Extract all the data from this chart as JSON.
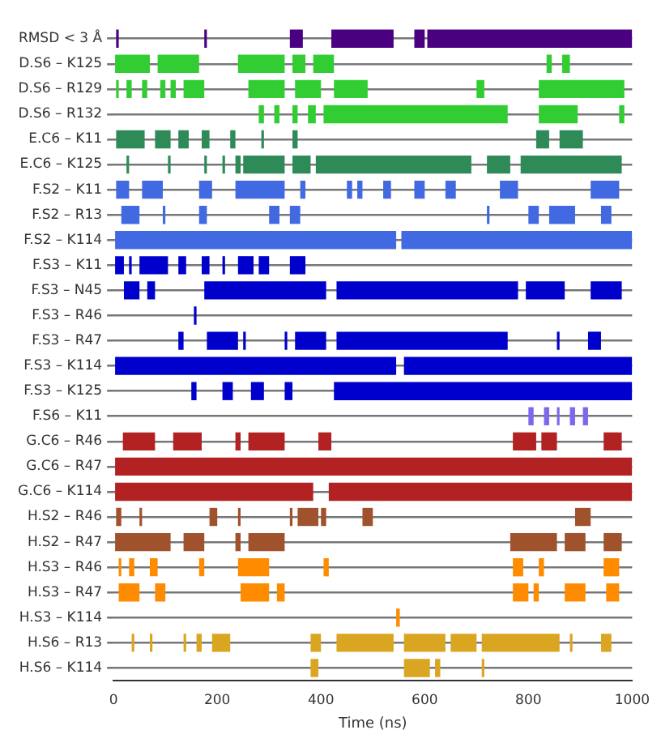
{
  "chart_data": {
    "type": "bar",
    "orientation": "horizontal",
    "xlabel": "Time (ns)",
    "xlim": [
      0,
      1000
    ],
    "xticks": [
      0,
      200,
      400,
      600,
      800,
      1000
    ],
    "grid": "y",
    "categories": [
      "RMSD < 3 Å",
      "D.S6 – K125",
      "D.S6 – R129",
      "D.S6 – R132",
      "E.C6 – K11",
      "E.C6 – K125",
      "F.S2 – K11",
      "F.S2 – R13",
      "F.S2 – K114",
      "F.S3 – K11",
      "F.S3 – N45",
      "F.S3 – R46",
      "F.S3 – R47",
      "F.S3 – K114",
      "F.S3 – K125",
      "F.S6 – K11",
      "G.C6 – R46",
      "G.C6 – R47",
      "G.C6 – K114",
      "H.S2 – R46",
      "H.S2 – R47",
      "H.S3 – R46",
      "H.S3 – R47",
      "H.S3 – K114",
      "H.S6 – R13",
      "H.S6 – K114"
    ],
    "series": [
      {
        "base": [
          5,
          3,
          5,
          280,
          5,
          25,
          5,
          15,
          3,
          3,
          20,
          155,
          125,
          3,
          150,
          800,
          18,
          3,
          3,
          5,
          3,
          10,
          10,
          545,
          35,
          380
        ],
        "values": [
          5,
          67,
          5,
          10,
          55,
          5,
          25,
          35,
          542,
          17,
          30,
          5,
          10,
          542,
          10,
          10,
          62,
          997,
          382,
          10,
          107,
          5,
          40,
          7,
          5,
          15
        ],
        "colors": [
          "#4b0082",
          "#32cd32",
          "#32cd32",
          "#32cd32",
          "#2e8b57",
          "#2e8b57",
          "#4169e1",
          "#4169e1",
          "#4169e1",
          "#0000cd",
          "#0000cd",
          "#0000cd",
          "#0000cd",
          "#0000cd",
          "#0000cd",
          "#7b68ee",
          "#b22222",
          "#b22222",
          "#b22222",
          "#a0522d",
          "#a0522d",
          "#ff8c00",
          "#ff8c00",
          "#ff8c00",
          "#daa520",
          "#daa520"
        ]
      },
      {
        "base": [
          175,
          85,
          25,
          310,
          80,
          105,
          55,
          95,
          555,
          30,
          65,
          null,
          180,
          560,
          210,
          830,
          115,
          null,
          415,
          50,
          135,
          30,
          80,
          null,
          70,
          560
        ],
        "values": [
          5,
          80,
          10,
          10,
          30,
          5,
          40,
          5,
          445,
          5,
          15,
          null,
          60,
          440,
          20,
          10,
          55,
          null,
          585,
          5,
          40,
          10,
          20,
          null,
          5,
          50
        ],
        "colors": [
          "#4b0082",
          "#32cd32",
          "#32cd32",
          "#32cd32",
          "#2e8b57",
          "#2e8b57",
          "#4169e1",
          "#4169e1",
          "#4169e1",
          "#0000cd",
          "#0000cd",
          "#0000cd",
          "#0000cd",
          "#0000cd",
          "#0000cd",
          "#7b68ee",
          "#b22222",
          "#b22222",
          "#b22222",
          "#a0522d",
          "#a0522d",
          "#ff8c00",
          "#ff8c00",
          "#ff8c00",
          "#daa520",
          "#daa520"
        ]
      },
      {
        "base": [
          340,
          240,
          55,
          345,
          125,
          175,
          165,
          165,
          null,
          50,
          175,
          null,
          250,
          null,
          265,
          855,
          235,
          null,
          null,
          185,
          235,
          70,
          245,
          null,
          135,
          620
        ],
        "values": [
          25,
          90,
          10,
          10,
          20,
          5,
          25,
          15,
          null,
          55,
          235,
          null,
          5,
          null,
          25,
          5,
          10,
          null,
          null,
          15,
          10,
          15,
          55,
          null,
          5,
          10
        ],
        "colors": [
          "#4b0082",
          "#32cd32",
          "#32cd32",
          "#32cd32",
          "#2e8b57",
          "#2e8b57",
          "#4169e1",
          "#4169e1",
          "#4169e1",
          "#0000cd",
          "#0000cd",
          "#0000cd",
          "#0000cd",
          "#0000cd",
          "#0000cd",
          "#7b68ee",
          "#b22222",
          "#b22222",
          "#b22222",
          "#a0522d",
          "#a0522d",
          "#ff8c00",
          "#ff8c00",
          "#ff8c00",
          "#daa520",
          "#daa520"
        ]
      },
      {
        "base": [
          420,
          345,
          90,
          375,
          170,
          210,
          235,
          300,
          null,
          125,
          430,
          null,
          330,
          null,
          330,
          880,
          260,
          null,
          null,
          240,
          260,
          165,
          315,
          null,
          160,
          710
        ],
        "values": [
          120,
          25,
          10,
          15,
          15,
          5,
          95,
          20,
          null,
          15,
          350,
          null,
          5,
          null,
          15,
          10,
          70,
          null,
          null,
          5,
          70,
          10,
          15,
          null,
          10,
          5
        ],
        "colors": [
          "#4b0082",
          "#32cd32",
          "#32cd32",
          "#32cd32",
          "#2e8b57",
          "#2e8b57",
          "#4169e1",
          "#4169e1",
          "#4169e1",
          "#0000cd",
          "#0000cd",
          "#0000cd",
          "#0000cd",
          "#0000cd",
          "#0000cd",
          "#7b68ee",
          "#b22222",
          "#b22222",
          "#b22222",
          "#a0522d",
          "#a0522d",
          "#ff8c00",
          "#ff8c00",
          "#ff8c00",
          "#daa520",
          "#daa520"
        ]
      },
      {
        "base": [
          580,
          385,
          110,
          405,
          225,
          235,
          360,
          340,
          null,
          170,
          795,
          null,
          350,
          null,
          425,
          905,
          395,
          null,
          null,
          340,
          765,
          240,
          770,
          null,
          190,
          null
        ],
        "values": [
          20,
          40,
          10,
          355,
          10,
          10,
          10,
          20,
          null,
          15,
          75,
          null,
          60,
          null,
          575,
          10,
          25,
          null,
          null,
          5,
          90,
          60,
          30,
          null,
          35,
          null
        ],
        "colors": [
          "#4b0082",
          "#32cd32",
          "#32cd32",
          "#32cd32",
          "#2e8b57",
          "#2e8b57",
          "#4169e1",
          "#4169e1",
          "#4169e1",
          "#0000cd",
          "#0000cd",
          "#0000cd",
          "#0000cd",
          "#0000cd",
          "#0000cd",
          "#7b68ee",
          "#b22222",
          "#b22222",
          "#b22222",
          "#a0522d",
          "#a0522d",
          "#ff8c00",
          "#ff8c00",
          "#ff8c00",
          "#daa520",
          "#daa520"
        ]
      },
      {
        "base": [
          605,
          835,
          135,
          820,
          285,
          250,
          450,
          720,
          null,
          210,
          920,
          null,
          430,
          null,
          null,
          null,
          770,
          null,
          null,
          355,
          870,
          405,
          810,
          null,
          380,
          null
        ],
        "values": [
          395,
          10,
          40,
          75,
          5,
          80,
          10,
          5,
          null,
          5,
          60,
          null,
          330,
          null,
          null,
          null,
          45,
          null,
          null,
          40,
          40,
          10,
          10,
          null,
          20,
          null
        ],
        "colors": [
          "#4b0082",
          "#32cd32",
          "#32cd32",
          "#32cd32",
          "#2e8b57",
          "#2e8b57",
          "#4169e1",
          "#4169e1",
          "#4169e1",
          "#0000cd",
          "#0000cd",
          "#0000cd",
          "#0000cd",
          "#0000cd",
          "#0000cd",
          "#7b68ee",
          "#b22222",
          "#b22222",
          "#b22222",
          "#a0522d",
          "#a0522d",
          "#ff8c00",
          "#ff8c00",
          "#ff8c00",
          "#daa520",
          "#daa520"
        ]
      },
      {
        "base": [
          null,
          865,
          260,
          975,
          345,
          345,
          470,
          800,
          null,
          240,
          null,
          null,
          855,
          null,
          null,
          null,
          825,
          null,
          null,
          400,
          945,
          770,
          870,
          null,
          430,
          null
        ],
        "values": [
          null,
          15,
          70,
          10,
          10,
          35,
          10,
          20,
          null,
          30,
          null,
          null,
          5,
          null,
          null,
          null,
          30,
          null,
          null,
          10,
          35,
          20,
          40,
          null,
          110,
          null
        ],
        "colors": [
          "#4b0082",
          "#32cd32",
          "#32cd32",
          "#32cd32",
          "#2e8b57",
          "#2e8b57",
          "#4169e1",
          "#4169e1",
          "#4169e1",
          "#0000cd",
          "#0000cd",
          "#0000cd",
          "#0000cd",
          "#0000cd",
          "#0000cd",
          "#7b68ee",
          "#b22222",
          "#b22222",
          "#b22222",
          "#a0522d",
          "#a0522d",
          "#ff8c00",
          "#ff8c00",
          "#ff8c00",
          "#daa520",
          "#daa520"
        ]
      },
      {
        "base": [
          null,
          null,
          350,
          null,
          815,
          390,
          520,
          840,
          null,
          280,
          null,
          null,
          915,
          null,
          null,
          null,
          945,
          null,
          null,
          480,
          null,
          820,
          950,
          null,
          560,
          null
        ],
        "values": [
          null,
          null,
          50,
          null,
          25,
          300,
          15,
          50,
          null,
          20,
          null,
          null,
          25,
          null,
          null,
          null,
          35,
          null,
          null,
          20,
          null,
          10,
          25,
          null,
          80,
          null
        ],
        "colors": [
          "#4b0082",
          "#32cd32",
          "#32cd32",
          "#32cd32",
          "#2e8b57",
          "#2e8b57",
          "#4169e1",
          "#4169e1",
          "#4169e1",
          "#0000cd",
          "#0000cd",
          "#0000cd",
          "#0000cd",
          "#0000cd",
          "#0000cd",
          "#7b68ee",
          "#b22222",
          "#b22222",
          "#b22222",
          "#a0522d",
          "#a0522d",
          "#ff8c00",
          "#ff8c00",
          "#ff8c00",
          "#daa520",
          "#daa520"
        ]
      },
      {
        "base": [
          null,
          null,
          425,
          null,
          860,
          720,
          580,
          940,
          null,
          340,
          null,
          null,
          null,
          null,
          null,
          null,
          null,
          null,
          null,
          890,
          null,
          945,
          null,
          null,
          650,
          null
        ],
        "values": [
          null,
          null,
          65,
          null,
          45,
          45,
          20,
          20,
          null,
          30,
          null,
          null,
          null,
          null,
          null,
          null,
          null,
          null,
          null,
          30,
          null,
          30,
          null,
          null,
          50,
          null
        ],
        "colors": [
          "#4b0082",
          "#32cd32",
          "#32cd32",
          "#32cd32",
          "#2e8b57",
          "#2e8b57",
          "#4169e1",
          "#4169e1",
          "#4169e1",
          "#0000cd",
          "#0000cd",
          "#0000cd",
          "#0000cd",
          "#0000cd",
          "#0000cd",
          "#7b68ee",
          "#b22222",
          "#b22222",
          "#b22222",
          "#a0522d",
          "#a0522d",
          "#ff8c00",
          "#ff8c00",
          "#ff8c00",
          "#daa520",
          "#daa520"
        ]
      },
      {
        "base": [
          null,
          null,
          700,
          null,
          null,
          785,
          640,
          null,
          null,
          null,
          null,
          null,
          null,
          null,
          null,
          null,
          null,
          null,
          null,
          null,
          null,
          null,
          null,
          null,
          710,
          null
        ],
        "values": [
          null,
          null,
          15,
          null,
          null,
          195,
          20,
          null,
          null,
          null,
          null,
          null,
          null,
          null,
          null,
          null,
          null,
          null,
          null,
          null,
          null,
          null,
          null,
          null,
          150,
          null
        ],
        "colors": [
          "#4b0082",
          "#32cd32",
          "#32cd32",
          "#32cd32",
          "#2e8b57",
          "#2e8b57",
          "#4169e1",
          "#4169e1",
          "#4169e1",
          "#0000cd",
          "#0000cd",
          "#0000cd",
          "#0000cd",
          "#0000cd",
          "#0000cd",
          "#7b68ee",
          "#b22222",
          "#b22222",
          "#b22222",
          "#a0522d",
          "#a0522d",
          "#ff8c00",
          "#ff8c00",
          "#ff8c00",
          "#daa520",
          "#daa520"
        ]
      },
      {
        "base": [
          null,
          null,
          820,
          null,
          null,
          null,
          745,
          null,
          null,
          null,
          null,
          null,
          null,
          null,
          null,
          null,
          null,
          null,
          null,
          null,
          null,
          null,
          null,
          null,
          880,
          null
        ],
        "values": [
          null,
          null,
          165,
          null,
          null,
          null,
          35,
          null,
          null,
          null,
          null,
          null,
          null,
          null,
          null,
          null,
          null,
          null,
          null,
          null,
          null,
          null,
          null,
          null,
          5,
          null
        ],
        "colors": [
          "#4b0082",
          "#32cd32",
          "#32cd32",
          "#32cd32",
          "#2e8b57",
          "#2e8b57",
          "#4169e1",
          "#4169e1",
          "#4169e1",
          "#0000cd",
          "#0000cd",
          "#0000cd",
          "#0000cd",
          "#0000cd",
          "#0000cd",
          "#7b68ee",
          "#b22222",
          "#b22222",
          "#b22222",
          "#a0522d",
          "#a0522d",
          "#ff8c00",
          "#ff8c00",
          "#ff8c00",
          "#daa520",
          "#daa520"
        ]
      },
      {
        "base": [
          null,
          null,
          null,
          null,
          null,
          null,
          920,
          null,
          null,
          null,
          null,
          null,
          null,
          null,
          null,
          null,
          null,
          null,
          null,
          null,
          null,
          null,
          null,
          null,
          940,
          null
        ],
        "values": [
          null,
          null,
          null,
          null,
          null,
          null,
          55,
          null,
          null,
          null,
          null,
          null,
          null,
          null,
          null,
          null,
          null,
          null,
          null,
          null,
          null,
          null,
          null,
          null,
          20,
          null
        ],
        "colors": [
          "#4b0082",
          "#32cd32",
          "#32cd32",
          "#32cd32",
          "#2e8b57",
          "#2e8b57",
          "#4169e1",
          "#4169e1",
          "#4169e1",
          "#0000cd",
          "#0000cd",
          "#0000cd",
          "#0000cd",
          "#0000cd",
          "#0000cd",
          "#7b68ee",
          "#b22222",
          "#b22222",
          "#b22222",
          "#a0522d",
          "#a0522d",
          "#ff8c00",
          "#ff8c00",
          "#ff8c00",
          "#daa520",
          "#daa520"
        ]
      }
    ]
  }
}
